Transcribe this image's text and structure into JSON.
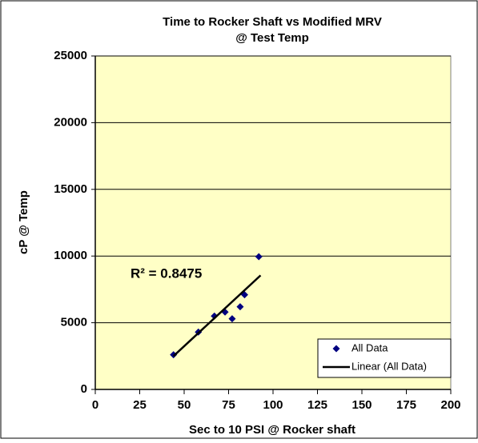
{
  "chart_data": {
    "type": "scatter",
    "title": [
      "Time to Rocker Shaft vs Modified  MRV",
      "@ Test Temp"
    ],
    "x_label": "Sec to 10 PSI @ Rocker shaft",
    "y_label": "cP @ Temp",
    "annotation": "R² = 0.8475",
    "xlim": [
      0,
      200
    ],
    "xticks": [
      0,
      25,
      50,
      75,
      100,
      125,
      150,
      175,
      200
    ],
    "ylim": [
      0,
      25000
    ],
    "yticks": [
      0,
      5000,
      10000,
      15000,
      20000,
      25000
    ],
    "grid": true,
    "legend": "lower right",
    "series": [
      {
        "name": "All Data",
        "color": "#000080",
        "kind": "marker",
        "x": [
          44,
          58,
          67,
          73,
          77,
          81.5,
          84,
          92
        ],
        "values": [
          2600,
          4300,
          5500,
          5800,
          5300,
          6200,
          7100,
          9950
        ]
      },
      {
        "name": "Linear (All Data)",
        "color": "#000000",
        "kind": "line",
        "x": [
          44,
          93
        ],
        "values": [
          2500,
          8550
        ]
      }
    ]
  }
}
